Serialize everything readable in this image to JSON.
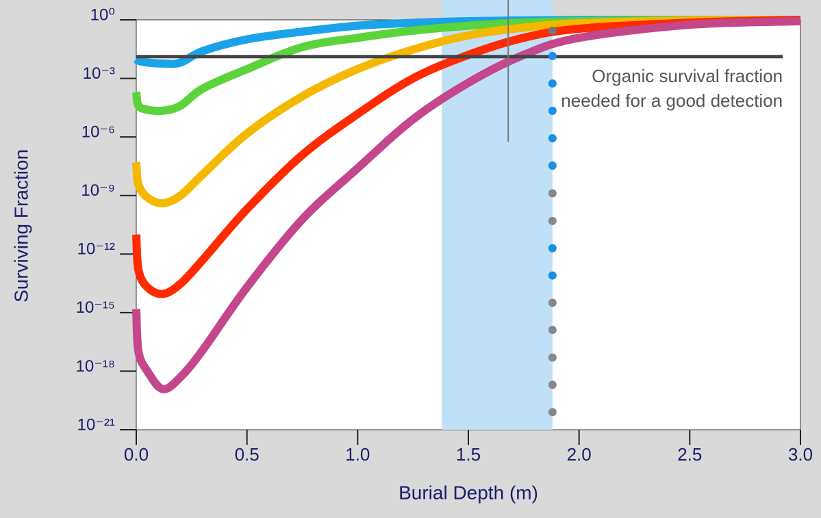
{
  "chart_data": {
    "type": "line",
    "log_y": true,
    "x_label": "Burial Depth (m)",
    "y_label": "Surviving Fraction",
    "x": [
      0,
      0.01,
      0.05,
      0.12,
      0.2,
      0.3,
      0.5,
      0.75,
      1.0,
      1.25,
      1.5,
      1.75,
      2.0,
      2.5,
      3.0
    ],
    "series": [
      {
        "color": "#1aa3e8",
        "values": [
          0.01,
          0.008,
          0.0065,
          0.0058,
          0.0065,
          0.025,
          0.1,
          0.25,
          0.5,
          0.7,
          0.85,
          0.93,
          0.97,
          0.99,
          1
        ]
      },
      {
        "color": "#5ad43a",
        "values": [
          0.0002,
          4e-05,
          2.5e-05,
          2.2e-05,
          4e-05,
          0.0003,
          0.003,
          0.04,
          0.12,
          0.28,
          0.5,
          0.72,
          0.85,
          0.97,
          1
        ]
      },
      {
        "color": "#f5b800",
        "values": [
          5e-08,
          3.5e-09,
          8e-10,
          4e-10,
          1e-09,
          1.2e-08,
          1.5e-06,
          0.00012,
          0.003,
          0.03,
          0.16,
          0.4,
          0.66,
          0.93,
          1
        ]
      },
      {
        "color": "#ff2a00",
        "values": [
          1e-11,
          1.5e-13,
          2e-14,
          9e-15,
          3e-14,
          5e-13,
          2e-10,
          1.2e-07,
          1.5e-05,
          0.001,
          0.016,
          0.12,
          0.35,
          0.72,
          1
        ]
      },
      {
        "color": "#c4478c",
        "values": [
          1.5e-15,
          1e-17,
          1e-18,
          1.2e-19,
          5e-19,
          1.2e-17,
          2e-14,
          6e-11,
          2.5e-08,
          8e-06,
          0.0006,
          0.016,
          0.12,
          0.56,
          0.85
        ]
      }
    ],
    "xlim": [
      0,
      3
    ],
    "ylim": [
      1e-21,
      1
    ],
    "xticks": [
      {
        "value": 0,
        "label": "0.0"
      },
      0.5,
      {
        "value": 1,
        "label": "1.0"
      },
      1.5,
      {
        "value": 2,
        "label": "2.0"
      },
      2.5,
      {
        "value": 3,
        "label": "3.0"
      }
    ],
    "yticks": [
      {
        "value": 1,
        "label": "10⁰"
      },
      {
        "value": 0.001,
        "label": "10⁻³"
      },
      {
        "value": 1e-06,
        "label": "10⁻⁶"
      },
      {
        "value": 1e-09,
        "label": "10⁻⁹"
      },
      {
        "value": 1e-12,
        "label": "10⁻¹²"
      },
      {
        "value": 1e-15,
        "label": "10⁻¹⁵"
      },
      {
        "value": 1e-18,
        "label": "10⁻¹⁸"
      },
      {
        "value": 1e-21,
        "label": "10⁻²¹"
      }
    ],
    "hline": {
      "value": 0.013,
      "x": [
        0,
        2.92
      ],
      "color": "#444444"
    },
    "span": {
      "x": [
        1.38,
        1.88
      ],
      "color": "#bfe0f7"
    },
    "dots": {
      "x": 1.88,
      "y": [
        0.28,
        0.014,
        0.00055,
        2.2e-05,
        8.5e-07,
        3.4e-08,
        1.3e-09,
        5e-11,
        2e-12,
        8e-14,
        3.2e-15,
        1.3e-16,
        5e-18,
        2e-19,
        8e-21
      ],
      "colors": [
        "#777777",
        "#1a8fe8",
        "#1a8fe8",
        "#1a8fe8",
        "#1a8fe8",
        "#1a8fe8",
        "#888888",
        "#888888",
        "#1a8fe8",
        "#1a8fe8",
        "#888888",
        "#888888",
        "#888888",
        "#888888",
        "#888888"
      ]
    },
    "annotation": {
      "lines": [
        "Organic survival fraction",
        "needed for a good detection"
      ],
      "x": 2.92,
      "pointer_x": 1.68
    }
  }
}
